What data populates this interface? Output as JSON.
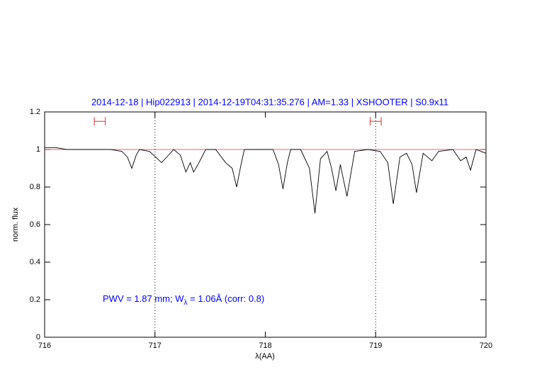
{
  "chart_data": {
    "type": "line",
    "title": "2014-12-18 | Hip022913 | 2014-12-19T04:31:35.276 | AM=1.33 | XSHOOTER | S0.9x11",
    "x_label": "λ(AA)",
    "y_label": "norm. flux",
    "annotation": [
      "PWV = 1.87 mm; W",
      "λ",
      " = 1.06Å (corr: 0.8)"
    ],
    "xlim": [
      716,
      720
    ],
    "ylim": [
      0,
      1.2
    ],
    "xticks": [
      716,
      717,
      718,
      719,
      720
    ],
    "yticks": [
      0,
      0.2,
      0.4,
      0.6,
      0.8,
      1,
      1.2
    ],
    "series": [
      {
        "color": "#000000",
        "x": [
          716.0,
          716.1,
          716.2,
          716.3,
          716.4,
          716.5,
          716.6,
          716.7,
          716.75,
          716.79,
          716.83,
          716.86,
          716.95,
          717.06,
          717.17,
          717.23,
          717.28,
          717.32,
          717.35,
          717.39,
          717.46,
          717.55,
          717.64,
          717.7,
          717.74,
          717.78,
          717.81,
          717.93,
          718.07,
          718.12,
          718.16,
          718.2,
          718.23,
          718.32,
          718.4,
          718.45,
          718.5,
          718.56,
          718.6,
          718.64,
          718.68,
          718.74,
          718.81,
          718.93,
          719.04,
          719.11,
          719.16,
          719.22,
          719.28,
          719.33,
          719.37,
          719.43,
          719.51,
          719.57,
          719.7,
          719.77,
          719.82,
          719.86,
          719.91,
          720.0
        ],
        "values": [
          1.01,
          1.01,
          1.0,
          1.0,
          1.0,
          1.0,
          1.0,
          0.99,
          0.96,
          0.9,
          0.97,
          1.0,
          0.99,
          0.93,
          1.0,
          0.97,
          0.88,
          0.93,
          0.88,
          0.92,
          1.0,
          1.0,
          0.93,
          0.9,
          0.8,
          0.92,
          1.0,
          1.0,
          1.0,
          0.92,
          0.79,
          0.93,
          1.0,
          1.0,
          0.9,
          0.66,
          0.95,
          0.99,
          0.9,
          0.78,
          0.92,
          0.75,
          0.99,
          1.0,
          0.99,
          0.93,
          0.71,
          0.96,
          0.98,
          0.92,
          0.77,
          0.98,
          0.94,
          0.99,
          1.0,
          0.94,
          0.96,
          0.89,
          1.0,
          0.98
        ]
      }
    ],
    "reference_line": {
      "value": 1,
      "color": "#e03030"
    },
    "vlines": [
      717,
      719
    ],
    "ranges": [
      {
        "x": [
          716.45,
          716.55
        ],
        "y": 1.15
      },
      {
        "x": [
          718.95,
          719.05
        ],
        "y": 1.15
      }
    ],
    "range_color": "#e03030"
  }
}
